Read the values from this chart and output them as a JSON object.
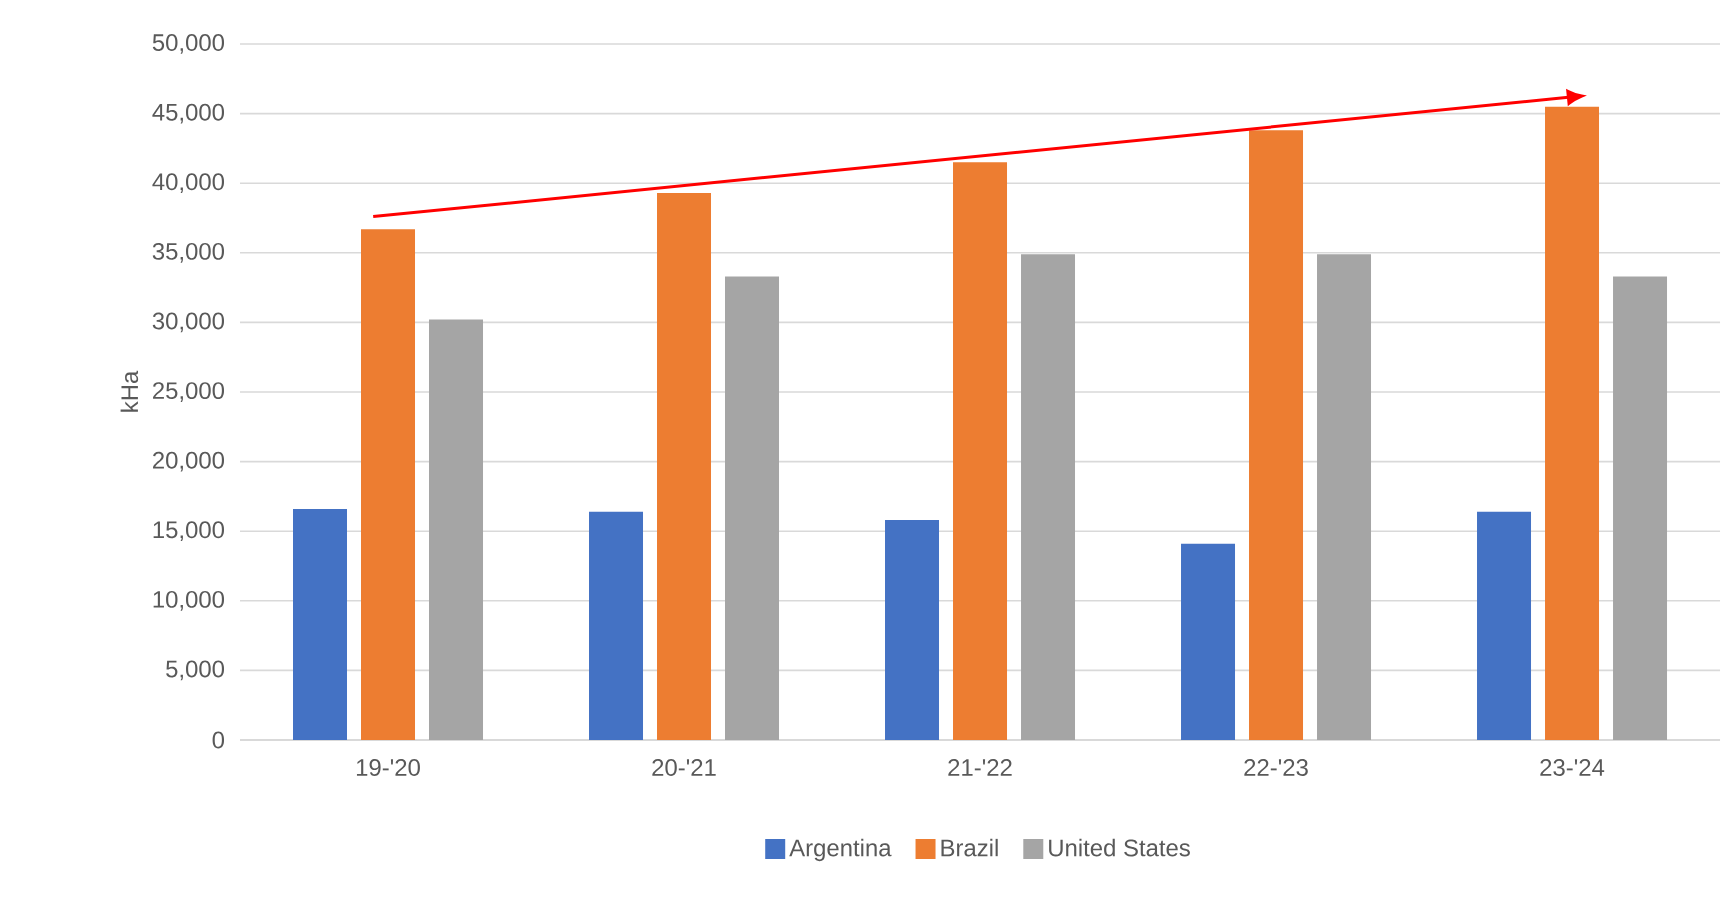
{
  "chart_data": {
    "type": "bar",
    "ylabel": "kHa",
    "categories": [
      "19-'20",
      "20-'21",
      "21-'22",
      "22-'23",
      "23-'24"
    ],
    "series": [
      {
        "name": "Argentina",
        "color": "#4472c4",
        "values": [
          16600,
          16400,
          15800,
          14100,
          16400
        ]
      },
      {
        "name": "Brazil",
        "color": "#ed7d31",
        "values": [
          36700,
          39300,
          41500,
          43800,
          45500
        ]
      },
      {
        "name": "United States",
        "color": "#a5a5a5",
        "values": [
          30200,
          33300,
          34900,
          34900,
          33300
        ]
      }
    ],
    "ylim": [
      0,
      50000
    ],
    "yticks": [
      0,
      {
        "value": 5000,
        "label": "5,000"
      },
      {
        "value": 10000,
        "label": "10,000"
      },
      {
        "value": 15000,
        "label": "15,000"
      },
      {
        "value": 20000,
        "label": "20,000"
      },
      {
        "value": 25000,
        "label": "25,000"
      },
      {
        "value": 30000,
        "label": "30,000"
      },
      {
        "value": 35000,
        "label": "35,000"
      },
      {
        "value": 40000,
        "label": "40,000"
      },
      {
        "value": 45000,
        "label": "45,000"
      },
      {
        "value": 50000,
        "label": "50,000"
      }
    ],
    "grid": "y",
    "legend": "bottom"
  }
}
